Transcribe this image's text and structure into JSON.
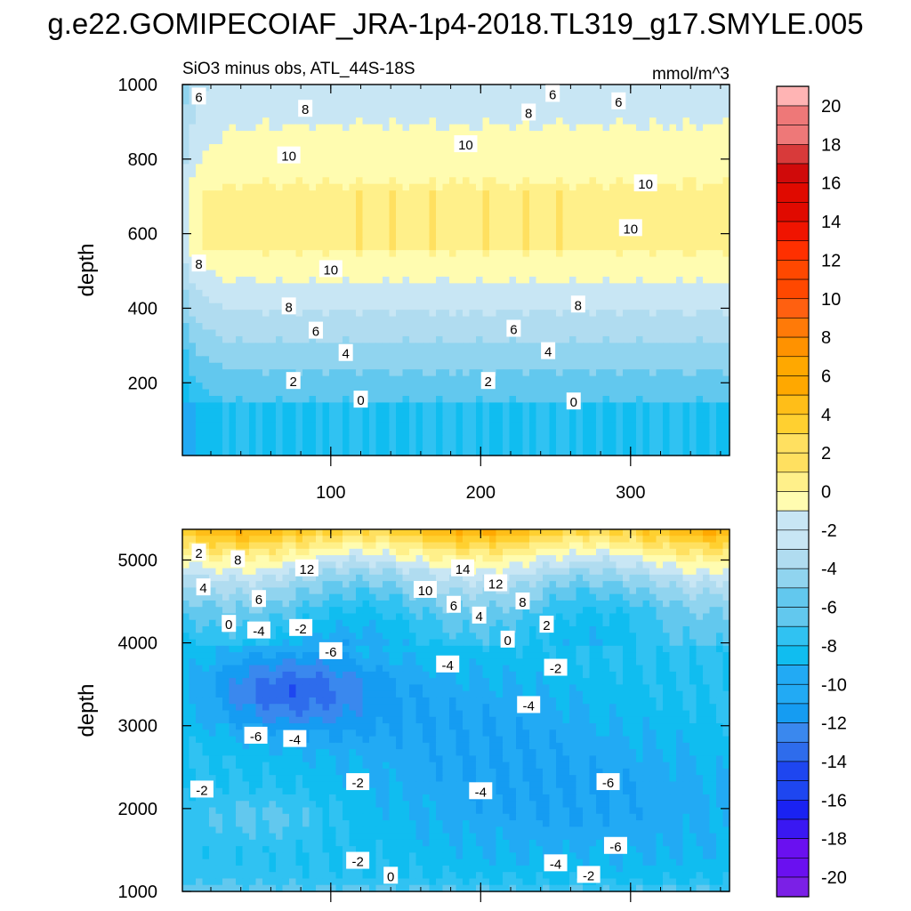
{
  "title": "g.e22.GOMIPECOIAF_JRA-1p4-2018.TL319_g17.SMYLE.005",
  "colors": {
    "levels": [
      "#7b20e6",
      "#6a10f0",
      "#3a18f2",
      "#1a22f2",
      "#1e46f0",
      "#2e6cec",
      "#3a88ee",
      "#159cf2",
      "#22aaf4",
      "#10bdf0",
      "#30c2f2",
      "#62c8ee",
      "#90d4ef",
      "#b0dcf0",
      "#c8e6f4",
      "#fffcb0",
      "#fff08a",
      "#ffe060",
      "#ffd030",
      "#ffbe18",
      "#ffa800",
      "#ff9200",
      "#ff7a08",
      "#ff6010",
      "#ff4800",
      "#ff3000",
      "#f01400",
      "#e00a00",
      "#d00a0a",
      "#d83a3a",
      "#ee7878",
      "#ffb4b4"
    ]
  },
  "chart_data": [
    {
      "type": "contour",
      "panel": "top",
      "title_left": "SiO3 minus obs, ATL_44S-18S",
      "title_right": "mmol/m^3",
      "ylabel": "depth",
      "xlabel": "",
      "xlim": [
        1,
        366
      ],
      "ylim": [
        1000,
        5
      ],
      "xticks": [
        100,
        200,
        300
      ],
      "yticks": [
        200,
        400,
        600,
        800,
        1000
      ],
      "y_tick_labels": [
        "200",
        "400",
        "600",
        "800",
        "1000"
      ],
      "x_tick_labels": [
        "100",
        "200",
        "300"
      ],
      "contour_labels": [
        {
          "text": "0",
          "x": 120,
          "y": 155
        },
        {
          "text": "0",
          "x": 262,
          "y": 150
        },
        {
          "text": "2",
          "x": 75,
          "y": 205
        },
        {
          "text": "2",
          "x": 205,
          "y": 205
        },
        {
          "text": "4",
          "x": 110,
          "y": 280
        },
        {
          "text": "4",
          "x": 245,
          "y": 285
        },
        {
          "text": "6",
          "x": 90,
          "y": 340
        },
        {
          "text": "6",
          "x": 222,
          "y": 345
        },
        {
          "text": "8",
          "x": 72,
          "y": 405
        },
        {
          "text": "8",
          "x": 265,
          "y": 410
        },
        {
          "text": "8",
          "x": 12,
          "y": 520
        },
        {
          "text": "10",
          "x": 100,
          "y": 505
        },
        {
          "text": "10",
          "x": 300,
          "y": 615
        },
        {
          "text": "10",
          "x": 310,
          "y": 735
        },
        {
          "text": "10",
          "x": 72,
          "y": 810
        },
        {
          "text": "10",
          "x": 190,
          "y": 840
        },
        {
          "text": "8",
          "x": 232,
          "y": 925
        },
        {
          "text": "8",
          "x": 83,
          "y": 935
        },
        {
          "text": "6",
          "x": 12,
          "y": 968
        },
        {
          "text": "6",
          "x": 248,
          "y": 975
        },
        {
          "text": "6",
          "x": 292,
          "y": 955
        }
      ]
    },
    {
      "type": "contour",
      "panel": "bottom",
      "ylabel": "depth",
      "xlabel": "",
      "xlim": [
        1,
        366
      ],
      "ylim": [
        5370,
        1000
      ],
      "xticks": [
        100,
        200,
        300
      ],
      "yticks": [
        1000,
        2000,
        3000,
        4000,
        5000
      ],
      "y_tick_labels": [
        "1000",
        "2000",
        "3000",
        "4000",
        "5000"
      ],
      "contour_labels": [
        {
          "text": "0",
          "x": 140,
          "y": 1190
        },
        {
          "text": "-2",
          "x": 118,
          "y": 1370
        },
        {
          "text": "-2",
          "x": 272,
          "y": 1200
        },
        {
          "text": "-4",
          "x": 250,
          "y": 1340
        },
        {
          "text": "-6",
          "x": 290,
          "y": 1550
        },
        {
          "text": "-2",
          "x": 14,
          "y": 2230
        },
        {
          "text": "-2",
          "x": 118,
          "y": 2320
        },
        {
          "text": "-4",
          "x": 200,
          "y": 2210
        },
        {
          "text": "-6",
          "x": 285,
          "y": 2320
        },
        {
          "text": "-6",
          "x": 50,
          "y": 2880
        },
        {
          "text": "-4",
          "x": 76,
          "y": 2840
        },
        {
          "text": "-4",
          "x": 232,
          "y": 3250
        },
        {
          "text": "-4",
          "x": 178,
          "y": 3740
        },
        {
          "text": "-2",
          "x": 250,
          "y": 3700
        },
        {
          "text": "-6",
          "x": 100,
          "y": 3900
        },
        {
          "text": "0",
          "x": 32,
          "y": 4230
        },
        {
          "text": "-4",
          "x": 52,
          "y": 4150
        },
        {
          "text": "-2",
          "x": 80,
          "y": 4180
        },
        {
          "text": "0",
          "x": 218,
          "y": 4040
        },
        {
          "text": "2",
          "x": 244,
          "y": 4220
        },
        {
          "text": "6",
          "x": 52,
          "y": 4530
        },
        {
          "text": "4",
          "x": 15,
          "y": 4670
        },
        {
          "text": "6",
          "x": 182,
          "y": 4460
        },
        {
          "text": "4",
          "x": 199,
          "y": 4330
        },
        {
          "text": "8",
          "x": 228,
          "y": 4500
        },
        {
          "text": "10",
          "x": 163,
          "y": 4640
        },
        {
          "text": "12",
          "x": 210,
          "y": 4720
        },
        {
          "text": "12",
          "x": 84,
          "y": 4900
        },
        {
          "text": "14",
          "x": 188,
          "y": 4900
        },
        {
          "text": "2",
          "x": 12,
          "y": 5090
        },
        {
          "text": "8",
          "x": 38,
          "y": 5010
        }
      ]
    }
  ],
  "colorbar": {
    "labels": [
      "20",
      "18",
      "16",
      "14",
      "12",
      "10",
      "8",
      "6",
      "4",
      "2",
      "0",
      "-2",
      "-4",
      "-6",
      "-8",
      "-10",
      "-12",
      "-14",
      "-16",
      "-18",
      "-20"
    ]
  }
}
